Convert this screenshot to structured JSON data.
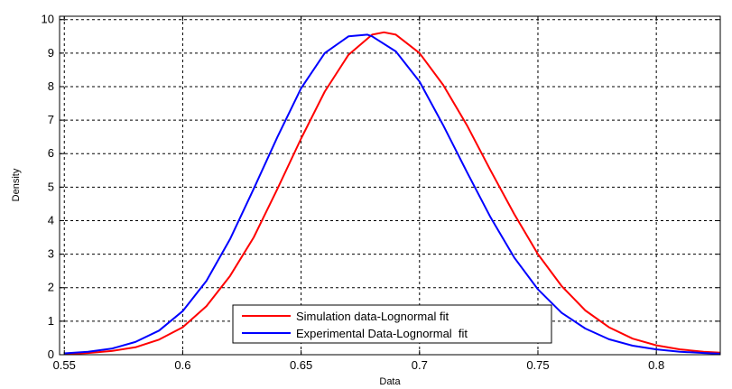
{
  "chart_data": {
    "type": "line",
    "title": "",
    "xlabel": "Data",
    "ylabel": "Density",
    "xlim": [
      0.548,
      0.827
    ],
    "ylim": [
      0,
      10.1
    ],
    "xticks": [
      0.55,
      0.6,
      0.65,
      0.7,
      0.75,
      0.8
    ],
    "xtick_labels": [
      "0.55",
      "0.6",
      "0.65",
      "0.7",
      "0.75",
      "0.8"
    ],
    "yticks": [
      0,
      1,
      2,
      3,
      4,
      5,
      6,
      7,
      8,
      9,
      10
    ],
    "ytick_labels": [
      "0",
      "1",
      "2",
      "3",
      "4",
      "5",
      "6",
      "7",
      "8",
      "9",
      "10"
    ],
    "grid": true,
    "grid_style": "dotted",
    "legend_position": "bottom-center",
    "series": [
      {
        "name": "Simulation data-Lognormal fit",
        "color": "#ff0000",
        "x": [
          0.55,
          0.56,
          0.57,
          0.58,
          0.59,
          0.6,
          0.61,
          0.62,
          0.63,
          0.64,
          0.65,
          0.66,
          0.67,
          0.68,
          0.685,
          0.69,
          0.7,
          0.71,
          0.72,
          0.73,
          0.74,
          0.75,
          0.76,
          0.77,
          0.78,
          0.79,
          0.8,
          0.81,
          0.82,
          0.827
        ],
        "y": [
          0.02,
          0.05,
          0.11,
          0.22,
          0.45,
          0.82,
          1.45,
          2.35,
          3.5,
          4.95,
          6.45,
          7.85,
          8.95,
          9.55,
          9.62,
          9.55,
          9.0,
          8.05,
          6.85,
          5.5,
          4.2,
          3.0,
          2.05,
          1.32,
          0.82,
          0.48,
          0.28,
          0.16,
          0.09,
          0.06
        ]
      },
      {
        "name": "Experimental Data-Lognormal  fit",
        "color": "#0000ff",
        "x": [
          0.55,
          0.56,
          0.57,
          0.58,
          0.59,
          0.6,
          0.61,
          0.62,
          0.63,
          0.64,
          0.65,
          0.66,
          0.67,
          0.678,
          0.68,
          0.69,
          0.7,
          0.71,
          0.72,
          0.73,
          0.74,
          0.75,
          0.76,
          0.77,
          0.78,
          0.79,
          0.8,
          0.81,
          0.82,
          0.827
        ],
        "y": [
          0.04,
          0.09,
          0.18,
          0.38,
          0.72,
          1.3,
          2.2,
          3.45,
          4.95,
          6.5,
          7.95,
          9.0,
          9.5,
          9.55,
          9.5,
          9.05,
          8.15,
          6.85,
          5.45,
          4.1,
          2.9,
          1.95,
          1.25,
          0.78,
          0.46,
          0.27,
          0.16,
          0.09,
          0.05,
          0.03
        ]
      }
    ]
  }
}
